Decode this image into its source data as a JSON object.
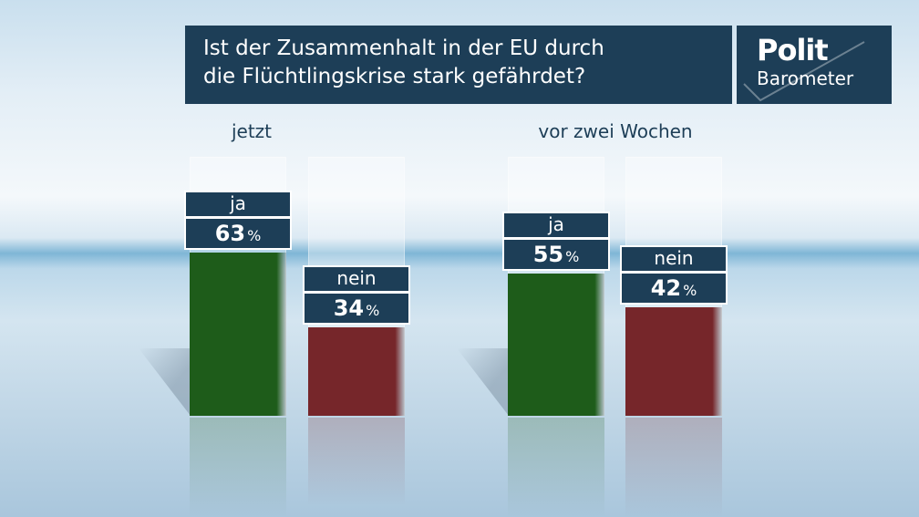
{
  "title_line1": "Ist der Zusammenhalt in der EU durch",
  "title_line2": "die Flüchtlingskrise stark gefährdet?",
  "logo": {
    "top": "Polit",
    "bottom": "Barometer"
  },
  "colors": {
    "ja": "#1e5c1a",
    "nein": "#76262a",
    "label_bg": "#1d3e57"
  },
  "chart_data": {
    "type": "bar",
    "categories": [
      "jetzt",
      "vor zwei Wochen"
    ],
    "series": [
      {
        "name": "ja",
        "values": [
          63,
          55
        ]
      },
      {
        "name": "nein",
        "values": [
          34,
          42
        ]
      }
    ],
    "unit": "%",
    "ylim": [
      0,
      100
    ]
  }
}
